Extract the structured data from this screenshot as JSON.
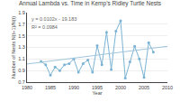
{
  "chart_data": {
    "type": "line",
    "title": "Annual Lambda vs. Time in Kemp’s Ridley Turtle Nests",
    "x_label": "Year",
    "y_label": "Number of Nests N(t+1)/N(t)",
    "x": [
      1983,
      1984,
      1985,
      1986,
      1987,
      1988,
      1989,
      1990,
      1991,
      1992,
      1993,
      1994,
      1995,
      1996,
      1997,
      1998,
      1999,
      2000,
      2001,
      2002,
      2003,
      2004,
      2005,
      2006,
      2007
    ],
    "series": [
      {
        "color": "#7ab3d4",
        "marker": "circle",
        "line_style": "solid",
        "values": [
          1.06,
          1.0,
          0.82,
          0.96,
          0.9,
          1.0,
          1.02,
          1.1,
          0.87,
          1.02,
          1.08,
          0.87,
          1.33,
          1.0,
          1.56,
          0.92,
          1.58,
          1.76,
          0.77,
          1.05,
          1.32,
          1.1,
          0.78,
          1.38,
          1.22
        ]
      },
      {
        "color": "#9fc5db",
        "line_style": "solid",
        "x": [
          1980,
          2010
        ],
        "values": [
          1.013,
          1.319
        ]
      }
    ],
    "annotations": [
      "y = 0.0102x - 19.183",
      "R² = 0.0984"
    ],
    "xlim": [
      1980,
      2010
    ],
    "ylim": [
      0.7,
      1.9
    ],
    "xticks": [
      1980,
      1985,
      1990,
      1995,
      2000,
      2005,
      2010
    ],
    "yticks": [
      0.7,
      0.9,
      1.1,
      1.3,
      1.5,
      1.7,
      1.9
    ],
    "grid": "y"
  }
}
